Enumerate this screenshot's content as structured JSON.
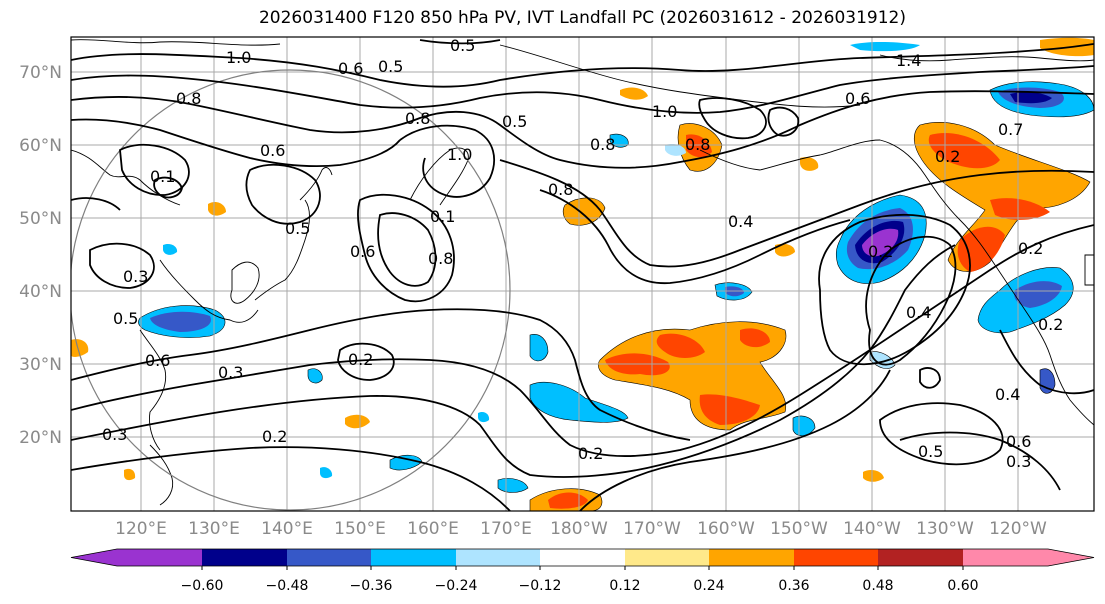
{
  "title": "2026031400 F120 850 hPa PV, IVT Landfall PC (2026031612 - 2026031912)",
  "lat_labels": [
    "70°N",
    "60°N",
    "50°N",
    "40°N",
    "30°N",
    "20°N"
  ],
  "lon_labels": [
    "120°E",
    "130°E",
    "140°E",
    "150°E",
    "160°E",
    "170°E",
    "180°W",
    "170°W",
    "160°W",
    "150°W",
    "140°W",
    "130°W",
    "120°W"
  ],
  "colorbar": {
    "ticks": [
      "−0.60",
      "−0.48",
      "−0.36",
      "−0.24",
      "−0.12",
      "0.12",
      "0.24",
      "0.36",
      "0.48",
      "0.60"
    ],
    "colors": [
      "#9a33d0",
      "#00008b",
      "#3658c8",
      "#00bfff",
      "#aee4ff",
      "#ffffff",
      "#ffe98a",
      "#ffa500",
      "#ff4500",
      "#b22222",
      "#ff88aa"
    ]
  },
  "contour_labels": [
    "1.0",
    "0.5",
    "0.6",
    "0.5",
    "0.8",
    "0.5",
    "1.0",
    "1.4",
    "0.6",
    "0.7",
    "0.8",
    "0.8",
    "1.0",
    "0.6",
    "0.8",
    "0.2",
    "0.5",
    "0.8",
    "0.4",
    "0.6",
    "0.3",
    "0.5",
    "0.1",
    "0.8",
    "0.2",
    "0.6",
    "0.3",
    "0.2",
    "0.4",
    "0.2",
    "0.4",
    "0.3",
    "0.2",
    "0.2",
    "0.5",
    "0.6",
    "0.3",
    "0.1",
    "0.2"
  ]
}
